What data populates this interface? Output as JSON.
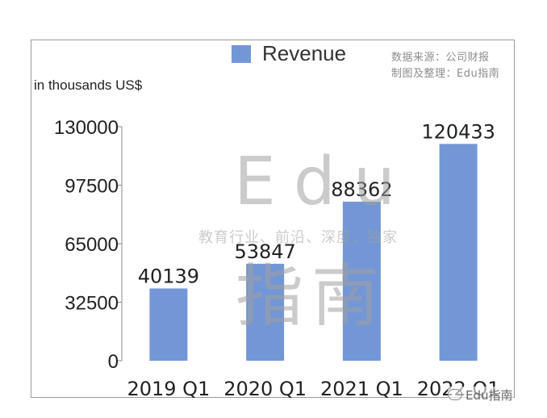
{
  "legend": {
    "label": "Revenue",
    "color": "#7397d6"
  },
  "source_lines": [
    "数据来源：公司财报",
    "制图及整理：Edu指南"
  ],
  "unit_label": "in thousands US$",
  "watermark": {
    "line1": "Edu",
    "line2": "教育行业、前沿、深度、独家",
    "line3": "指南"
  },
  "badge": {
    "text": "Edu指南",
    "icon": "wechat-icon"
  },
  "chart_data": {
    "type": "bar",
    "categories": [
      "2019 Q1",
      "2020 Q1",
      "2021 Q1",
      "2022 Q1"
    ],
    "series": [
      {
        "name": "Revenue",
        "values": [
          40139,
          53847,
          88362,
          120433
        ]
      }
    ],
    "ylabel": "in thousands US$",
    "ylim": [
      0,
      130000
    ],
    "yticks": [
      0,
      32500,
      65000,
      97500,
      130000
    ],
    "grid": false,
    "legend": "top"
  }
}
